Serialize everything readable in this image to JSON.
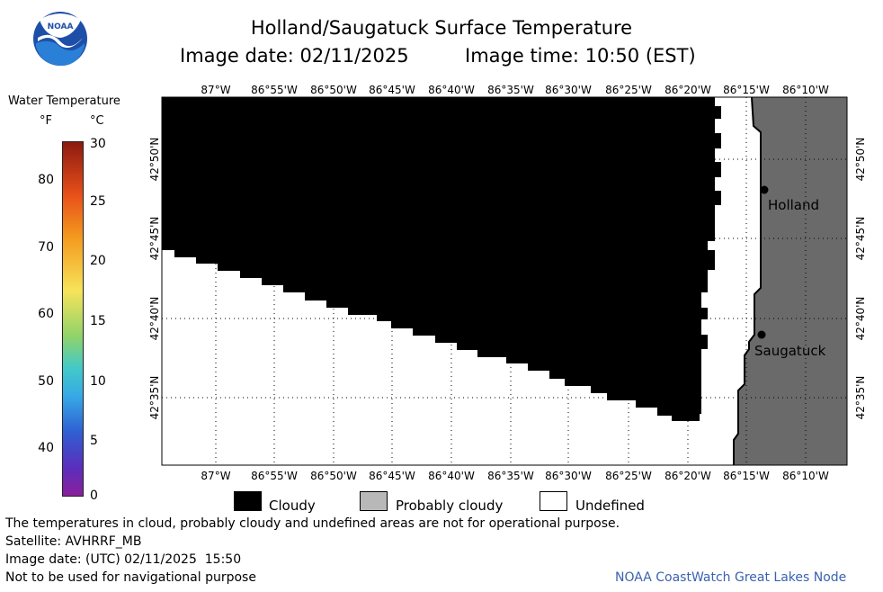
{
  "header": {
    "title": "Holland/Saugatuck Surface Temperature",
    "image_date_label": "Image date: 02/11/2025",
    "image_time_label": "Image time: 10:50 (EST)"
  },
  "logo": {
    "text": "NOAA"
  },
  "color_scale": {
    "title": "Water Temperature",
    "unit_f": "°F",
    "unit_c": "°C",
    "f_ticks": [
      "80",
      "70",
      "60",
      "50",
      "40"
    ],
    "c_ticks": [
      "30",
      "25",
      "20",
      "15",
      "10",
      "5",
      "0"
    ],
    "range_c": [
      0,
      30
    ]
  },
  "map": {
    "lon_labels": [
      "87°W",
      "86°55'W",
      "86°50'W",
      "86°45'W",
      "86°40'W",
      "86°35'W",
      "86°30'W",
      "86°25'W",
      "86°20'W",
      "86°15'W",
      "86°10'W"
    ],
    "lat_labels": [
      "42°50'N",
      "42°45'N",
      "42°40'N",
      "42°35'N"
    ],
    "places": [
      {
        "name": "Holland"
      },
      {
        "name": "Saugatuck"
      }
    ],
    "colors": {
      "cloudy": "#000000",
      "land": "#6a6a6a",
      "undefined": "#ffffff"
    }
  },
  "legend": {
    "cloudy": "Cloudy",
    "probably_cloudy": "Probably cloudy",
    "undefined": "Undefined"
  },
  "footer": {
    "note": "The temperatures in cloud, probably cloudy and undefined areas are not for operational purpose.",
    "satellite": "Satellite: AVHRRF_MB",
    "utc_date": "Image date: (UTC) 02/11/2025  15:50",
    "disclaimer": "Not to be used for navigational purpose",
    "credit": "NOAA CoastWatch Great Lakes Node"
  }
}
